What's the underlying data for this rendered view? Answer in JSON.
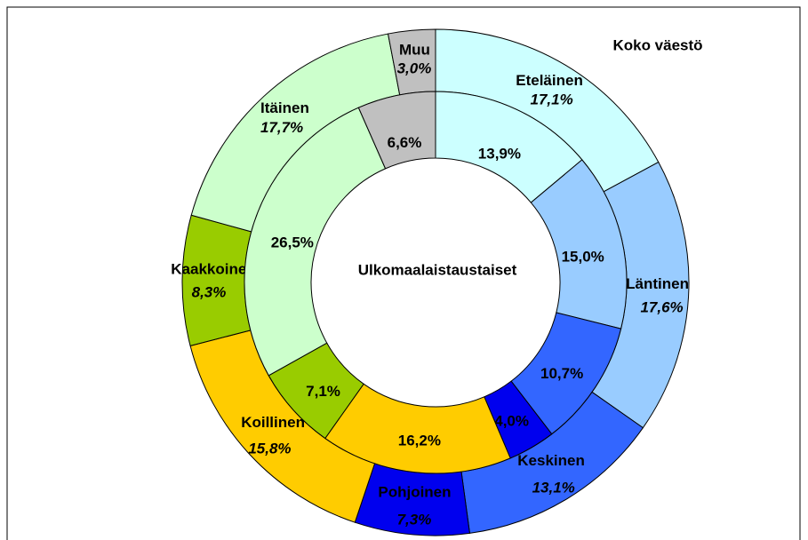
{
  "chart_data": {
    "type": "donut",
    "categories": [
      "Eteläinen",
      "Läntinen",
      "Keskinen",
      "Pohjoinen",
      "Koillinen",
      "Kaakkoinen",
      "Itäinen",
      "Muu"
    ],
    "colors": [
      "#ccffff",
      "#99ccff",
      "#3366ff",
      "#0000ee",
      "#ffcc00",
      "#99cc00",
      "#ccffcc",
      "#c0c0c0"
    ],
    "series": [
      {
        "name": "Koko väestö",
        "values": [
          17.1,
          17.6,
          13.1,
          7.3,
          15.8,
          8.3,
          17.7,
          3.0
        ],
        "value_labels": [
          "17,1%",
          "17,6%",
          "13,1%",
          "7,3%",
          "15,8%",
          "8,3%",
          "17,7%",
          "3,0%"
        ]
      },
      {
        "name": "Ulkomaalaistaustaiset",
        "values": [
          13.9,
          15.0,
          10.7,
          4.0,
          16.2,
          7.1,
          26.5,
          6.6
        ],
        "value_labels": [
          "13,9%",
          "15,0%",
          "10,7%",
          "4,0%",
          "16,2%",
          "7,1%",
          "26,5%",
          "6,6%"
        ]
      }
    ]
  }
}
